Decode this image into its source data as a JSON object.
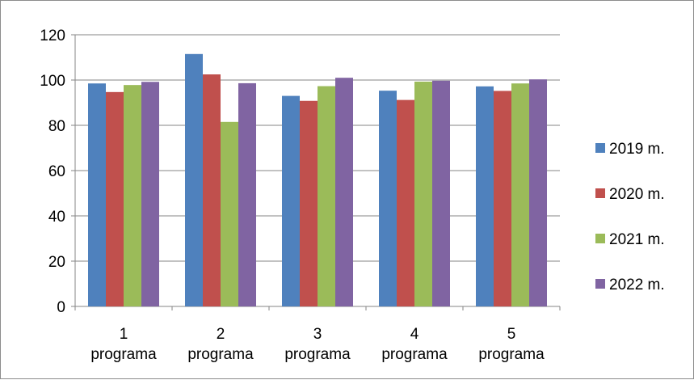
{
  "chart_data": {
    "type": "bar",
    "title": "",
    "xlabel": "",
    "ylabel": "",
    "categories": [
      [
        "1",
        "programa"
      ],
      [
        "2",
        "programa"
      ],
      [
        "3",
        "programa"
      ],
      [
        "4",
        "programa"
      ],
      [
        "5",
        "programa"
      ]
    ],
    "series": [
      {
        "name": "2019 m.",
        "color": "#4f81bd",
        "values": [
          98.5,
          111.5,
          93.0,
          95.3,
          97.2
        ]
      },
      {
        "name": "2020 m.",
        "color": "#c0504d",
        "values": [
          94.7,
          102.5,
          90.8,
          91.2,
          95.2
        ]
      },
      {
        "name": "2021 m.",
        "color": "#9bbb59",
        "values": [
          97.8,
          81.5,
          97.3,
          99.3,
          98.5
        ]
      },
      {
        "name": "2022 m.",
        "color": "#8064a2",
        "values": [
          99.2,
          98.6,
          101.0,
          99.7,
          100.3
        ]
      }
    ],
    "ylim": [
      0,
      120
    ],
    "yticks": [
      "0",
      "20",
      "40",
      "60",
      "80",
      "100",
      "120"
    ],
    "grid": true,
    "legend": "right"
  }
}
